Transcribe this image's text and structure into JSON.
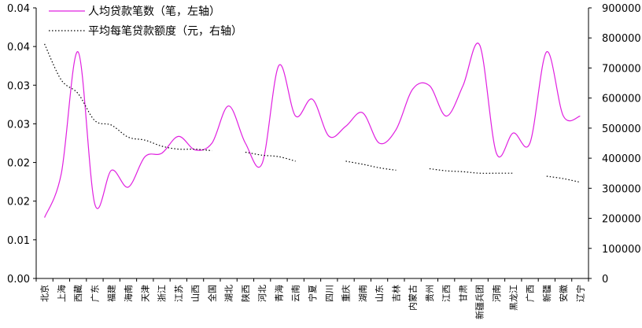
{
  "chart_data": {
    "type": "line",
    "categories": [
      "北京",
      "上海",
      "西藏",
      "广东",
      "福建",
      "海南",
      "天津",
      "浙江",
      "江苏",
      "山西",
      "全国",
      "湖北",
      "陕西",
      "河北",
      "青海",
      "云南",
      "宁夏",
      "四川",
      "重庆",
      "湖南",
      "山东",
      "吉林",
      "内蒙古",
      "贵州",
      "江西",
      "甘肃",
      "新疆兵团",
      "河南",
      "黑龙江",
      "广西",
      "新疆",
      "安徽",
      "辽宁"
    ],
    "left_axis": {
      "min": 0,
      "max": 0.04,
      "ticks": [
        "0.00",
        "0.01",
        "0.02",
        "0.02",
        "0.03",
        "0.03",
        "0.04",
        "0.04"
      ]
    },
    "right_axis": {
      "min": 0,
      "max": 900000,
      "ticks": [
        "0",
        "100000",
        "200000",
        "300000",
        "400000",
        "500000",
        "600000",
        "700000",
        "800000",
        "900000"
      ]
    },
    "legend": {
      "placement": "top-left"
    },
    "series": [
      {
        "name": "人均贷款笔数（笔，左轴）",
        "axis": "left",
        "style": "solid",
        "color": "#e020e0",
        "values": [
          0.009,
          0.0155,
          0.0335,
          0.011,
          0.016,
          0.0135,
          0.018,
          0.0185,
          0.021,
          0.019,
          0.02,
          0.0255,
          0.02,
          0.017,
          0.0315,
          0.024,
          0.0265,
          0.021,
          0.0225,
          0.0245,
          0.02,
          0.022,
          0.028,
          0.0285,
          0.024,
          0.0285,
          0.0345,
          0.0185,
          0.0215,
          0.02,
          0.0335,
          0.024,
          0.024
        ]
      },
      {
        "name": "平均每笔贷款额度（元，右轴）",
        "axis": "right",
        "style": "dotted",
        "color": "#000000",
        "values": [
          780000,
          660000,
          615000,
          525000,
          510000,
          470000,
          460000,
          440000,
          430000,
          430000,
          425000,
          null,
          420000,
          410000,
          405000,
          390000,
          null,
          null,
          390000,
          380000,
          368000,
          360000,
          null,
          365000,
          358000,
          355000,
          350000,
          350000,
          350000,
          null,
          340000,
          332000,
          320000
        ]
      }
    ]
  }
}
